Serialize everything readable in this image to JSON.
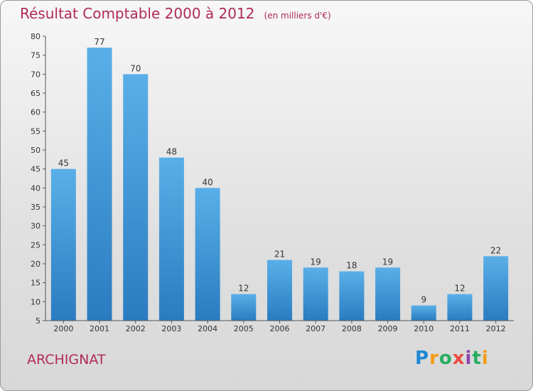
{
  "header": {
    "title": "Résultat Comptable 2000 à 2012",
    "unit_note": "(en milliers d'€)"
  },
  "footer": {
    "place": "ARCHIGNAT",
    "logo": [
      "P",
      "r",
      "o",
      "x",
      "i",
      "t",
      "i"
    ],
    "logo_colors": [
      "#1e88d4",
      "#f39c12",
      "#27ae60",
      "#e84c3d",
      "#8e44ad",
      "#27ae60",
      "#f39c12"
    ]
  },
  "colors": {
    "bar_top": "#5aafe8",
    "bar_bottom": "#2a7cc0",
    "title": "#b02a5b"
  },
  "chart_data": {
    "type": "bar",
    "title": "Résultat Comptable 2000 à 2012",
    "xlabel": "",
    "ylabel": "",
    "categories": [
      "2000",
      "2001",
      "2002",
      "2003",
      "2004",
      "2005",
      "2006",
      "2007",
      "2008",
      "2009",
      "2010",
      "2011",
      "2012"
    ],
    "values": [
      45,
      77,
      70,
      48,
      40,
      12,
      21,
      19,
      18,
      19,
      9,
      12,
      22
    ],
    "ylim": [
      5,
      80
    ],
    "yticks": [
      5,
      10,
      15,
      20,
      25,
      30,
      35,
      40,
      45,
      50,
      55,
      60,
      65,
      70,
      75,
      80
    ],
    "grid": false
  }
}
